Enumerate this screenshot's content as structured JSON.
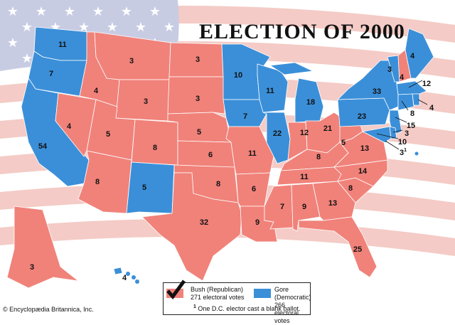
{
  "title": "ELECTION OF 2000",
  "copyright": "© Encyclopædia Britannica, Inc.",
  "colors": {
    "republican": "#f0827a",
    "democratic": "#3b8fd8",
    "flag_stripe": "#f4cbc6",
    "flag_canton": "#c8cce3"
  },
  "legend": {
    "bush": {
      "name": "Bush (Republican)",
      "votes": "271 electoral votes",
      "icon": "checkmark-icon"
    },
    "gore": {
      "name": "Gore (Democratic)",
      "votes": "266 electoral votes"
    },
    "footnote_mark": "1",
    "footnote": "One D.C. elector cast a blank ballot."
  },
  "states": [
    {
      "id": "WA",
      "votes": "11",
      "party": "D"
    },
    {
      "id": "OR",
      "votes": "7",
      "party": "D"
    },
    {
      "id": "CA",
      "votes": "54",
      "party": "D"
    },
    {
      "id": "NV",
      "votes": "4",
      "party": "R"
    },
    {
      "id": "ID",
      "votes": "4",
      "party": "R"
    },
    {
      "id": "MT",
      "votes": "3",
      "party": "R"
    },
    {
      "id": "WY",
      "votes": "3",
      "party": "R"
    },
    {
      "id": "UT",
      "votes": "5",
      "party": "R"
    },
    {
      "id": "AZ",
      "votes": "8",
      "party": "R"
    },
    {
      "id": "CO",
      "votes": "8",
      "party": "R"
    },
    {
      "id": "NM",
      "votes": "5",
      "party": "D"
    },
    {
      "id": "ND",
      "votes": "3",
      "party": "R"
    },
    {
      "id": "SD",
      "votes": "3",
      "party": "R"
    },
    {
      "id": "NE",
      "votes": "5",
      "party": "R"
    },
    {
      "id": "KS",
      "votes": "6",
      "party": "R"
    },
    {
      "id": "OK",
      "votes": "8",
      "party": "R"
    },
    {
      "id": "TX",
      "votes": "32",
      "party": "R"
    },
    {
      "id": "MN",
      "votes": "10",
      "party": "D"
    },
    {
      "id": "IA",
      "votes": "7",
      "party": "D"
    },
    {
      "id": "MO",
      "votes": "11",
      "party": "R"
    },
    {
      "id": "AR",
      "votes": "6",
      "party": "R"
    },
    {
      "id": "LA",
      "votes": "9",
      "party": "R"
    },
    {
      "id": "WI",
      "votes": "11",
      "party": "D"
    },
    {
      "id": "IL",
      "votes": "22",
      "party": "D"
    },
    {
      "id": "MI",
      "votes": "18",
      "party": "D"
    },
    {
      "id": "IN",
      "votes": "12",
      "party": "R"
    },
    {
      "id": "OH",
      "votes": "21",
      "party": "R"
    },
    {
      "id": "KY",
      "votes": "8",
      "party": "R"
    },
    {
      "id": "TN",
      "votes": "11",
      "party": "R"
    },
    {
      "id": "MS",
      "votes": "7",
      "party": "R"
    },
    {
      "id": "AL",
      "votes": "9",
      "party": "R"
    },
    {
      "id": "GA",
      "votes": "13",
      "party": "R"
    },
    {
      "id": "FL",
      "votes": "25",
      "party": "R"
    },
    {
      "id": "SC",
      "votes": "8",
      "party": "R"
    },
    {
      "id": "NC",
      "votes": "14",
      "party": "R"
    },
    {
      "id": "VA",
      "votes": "13",
      "party": "R"
    },
    {
      "id": "WV",
      "votes": "5",
      "party": "R"
    },
    {
      "id": "PA",
      "votes": "23",
      "party": "D"
    },
    {
      "id": "NY",
      "votes": "33",
      "party": "D"
    },
    {
      "id": "VT",
      "votes": "3",
      "party": "D"
    },
    {
      "id": "NH",
      "votes": "4",
      "party": "R"
    },
    {
      "id": "ME",
      "votes": "4",
      "party": "D"
    },
    {
      "id": "MA",
      "votes": "12",
      "party": "D"
    },
    {
      "id": "RI",
      "votes": "4",
      "party": "D"
    },
    {
      "id": "CT",
      "votes": "8",
      "party": "D"
    },
    {
      "id": "NJ",
      "votes": "15",
      "party": "D"
    },
    {
      "id": "DE",
      "votes": "3",
      "party": "D"
    },
    {
      "id": "MD",
      "votes": "10",
      "party": "D"
    },
    {
      "id": "DC",
      "votes": "3",
      "party": "D",
      "footnote": "1"
    },
    {
      "id": "AK",
      "votes": "3",
      "party": "R"
    },
    {
      "id": "HI",
      "votes": "4",
      "party": "D"
    }
  ]
}
